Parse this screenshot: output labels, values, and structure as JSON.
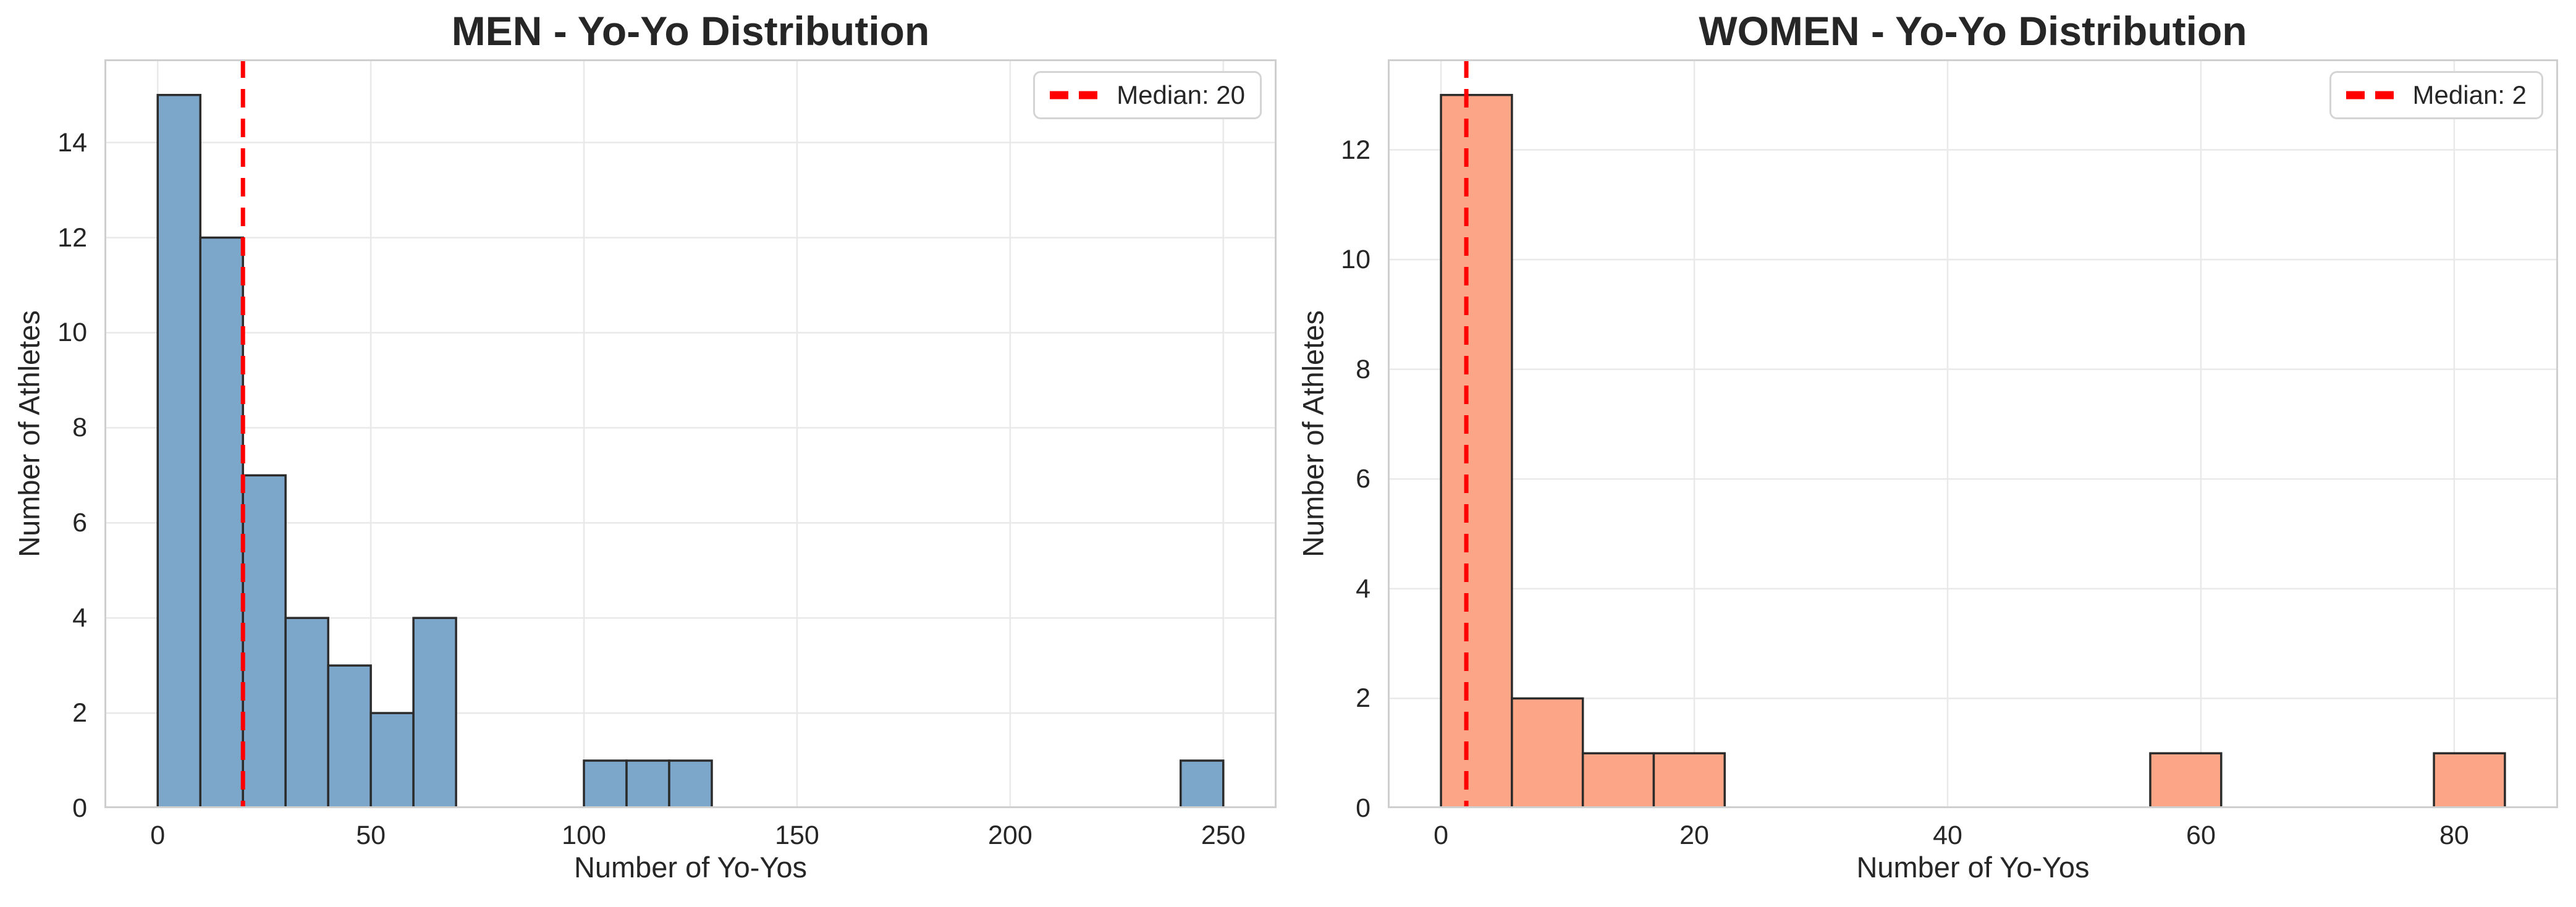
{
  "figure": {
    "background_color": "#FFFFFF",
    "text_color": "#262626",
    "grid_color": "#E9E9E9",
    "spine_color": "#CFCFCF"
  },
  "chart_data": [
    {
      "type": "bar",
      "subtype": "histogram",
      "title": "MEN - Yo-Yo Distribution",
      "xlabel": "Number of Yo-Yos",
      "ylabel": "Number of Athletes",
      "legend_label": "Median: 20",
      "legend_position": "upper right",
      "median": 20,
      "bin_start": 0,
      "bin_width": 10,
      "bin_counts": [
        15,
        12,
        7,
        4,
        3,
        2,
        4,
        0,
        0,
        0,
        1,
        1,
        1,
        0,
        0,
        0,
        0,
        0,
        0,
        0,
        0,
        0,
        0,
        0,
        1
      ],
      "xticks": [
        0,
        50,
        100,
        150,
        200,
        250
      ],
      "yticks": [
        0,
        2,
        4,
        6,
        8,
        10,
        12,
        14
      ],
      "xlim": [
        -12.5,
        262.5
      ],
      "ylim": [
        0,
        15.75
      ],
      "grid": true,
      "bar_fill": "#7DA7CA",
      "bar_edge": "#2B2B2B",
      "median_line_color": "#FF0000"
    },
    {
      "type": "bar",
      "subtype": "histogram",
      "title": "WOMEN - Yo-Yo Distribution",
      "xlabel": "Number of Yo-Yos",
      "ylabel": "Number of Athletes",
      "legend_label": "Median: 2",
      "legend_position": "upper right",
      "median": 2,
      "bin_start": 0,
      "bin_width": 5.6,
      "bin_counts": [
        13,
        2,
        1,
        1,
        0,
        0,
        0,
        0,
        0,
        0,
        1,
        0,
        0,
        0,
        1
      ],
      "xticks": [
        0,
        20,
        40,
        60,
        80
      ],
      "yticks": [
        0,
        2,
        4,
        6,
        8,
        10,
        12
      ],
      "xlim": [
        -4.2,
        88.2
      ],
      "ylim": [
        0,
        13.65
      ],
      "grid": true,
      "bar_fill": "#FDA687",
      "bar_edge": "#2B2B2B",
      "median_line_color": "#FF0000"
    }
  ]
}
